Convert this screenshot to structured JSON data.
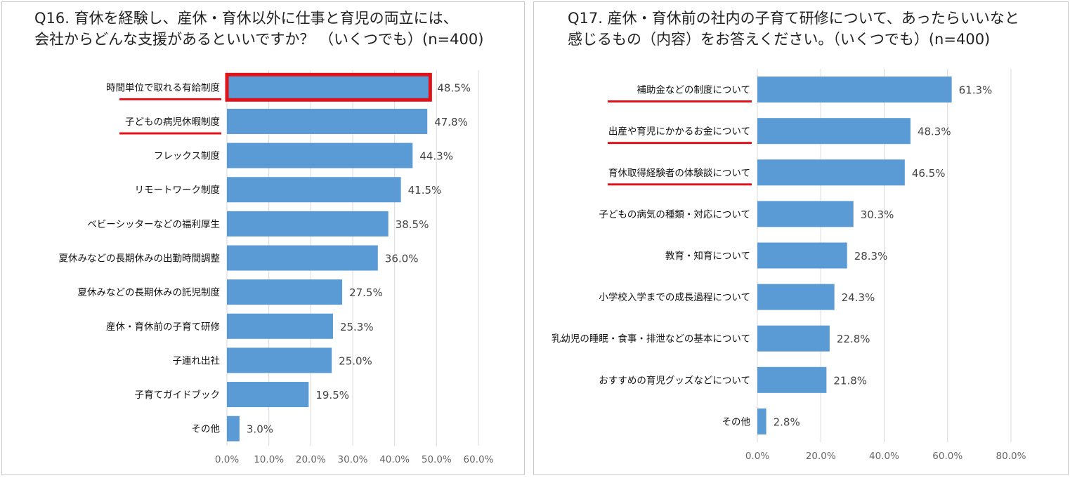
{
  "chart_data": [
    {
      "type": "bar",
      "orientation": "horizontal",
      "title_line1": "Q16. 育休を経験し、産休・育休以外に仕事と育児の両立には、",
      "title_line2": "会社からどんな支援があるといいですか？ （いくつでも）(n=400)",
      "categories": [
        "時間単位で取れる有給制度",
        "子どもの病児休暇制度",
        "フレックス制度",
        "リモートワーク制度",
        "ベビーシッターなどの福利厚生",
        "夏休みなどの長期休みの出勤時間調整",
        "夏休みなどの長期休みの託児制度",
        "産休・育休前の子育て研修",
        "子連れ出社",
        "子育てガイドブック",
        "その他"
      ],
      "values": [
        48.5,
        47.8,
        44.3,
        41.5,
        38.5,
        36.0,
        27.5,
        25.3,
        25.0,
        19.5,
        3.0
      ],
      "value_labels": [
        "48.5%",
        "47.8%",
        "44.3%",
        "41.5%",
        "38.5%",
        "36.0%",
        "27.5%",
        "25.3%",
        "25.0%",
        "19.5%",
        "3.0%"
      ],
      "xlim": [
        0,
        60
      ],
      "ticks": [
        0,
        10,
        20,
        30,
        40,
        50,
        60
      ],
      "tick_labels": [
        "0.0%",
        "10.0%",
        "20.0%",
        "30.0%",
        "40.0%",
        "50.0%",
        "60.0%"
      ],
      "highlight_box": [
        0
      ],
      "underlined": [
        0,
        1
      ],
      "grid": true,
      "bar_color": "#5b9bd5",
      "highlight_color": "#e0131a"
    },
    {
      "type": "bar",
      "orientation": "horizontal",
      "title_line1": "Q17. 産休・育休前の社内の子育て研修について、あったらいいなと",
      "title_line2": "感じるもの（内容）をお答えください。（いくつでも）(n=400)",
      "categories": [
        "補助金などの制度について",
        "出産や育児にかかるお金について",
        "育休取得経験者の体験談について",
        "子どもの病気の種類・対応について",
        "教育・知育について",
        "小学校入学までの成長過程について",
        "乳幼児の睡眠・食事・排泄などの基本について",
        "おすすめの育児グッズなどについて",
        "その他"
      ],
      "values": [
        61.3,
        48.3,
        46.5,
        30.3,
        28.3,
        24.3,
        22.8,
        21.8,
        2.8
      ],
      "value_labels": [
        "61.3%",
        "48.3%",
        "46.5%",
        "30.3%",
        "28.3%",
        "24.3%",
        "22.8%",
        "21.8%",
        "2.8%"
      ],
      "xlim": [
        0,
        80
      ],
      "ticks": [
        0,
        20,
        40,
        60,
        80
      ],
      "tick_labels": [
        "0.0%",
        "20.0%",
        "40.0%",
        "60.0%",
        "80.0%"
      ],
      "highlight_box": [],
      "underlined": [
        0,
        1,
        2
      ],
      "grid": true,
      "bar_color": "#5b9bd5",
      "highlight_color": "#e0131a"
    }
  ]
}
